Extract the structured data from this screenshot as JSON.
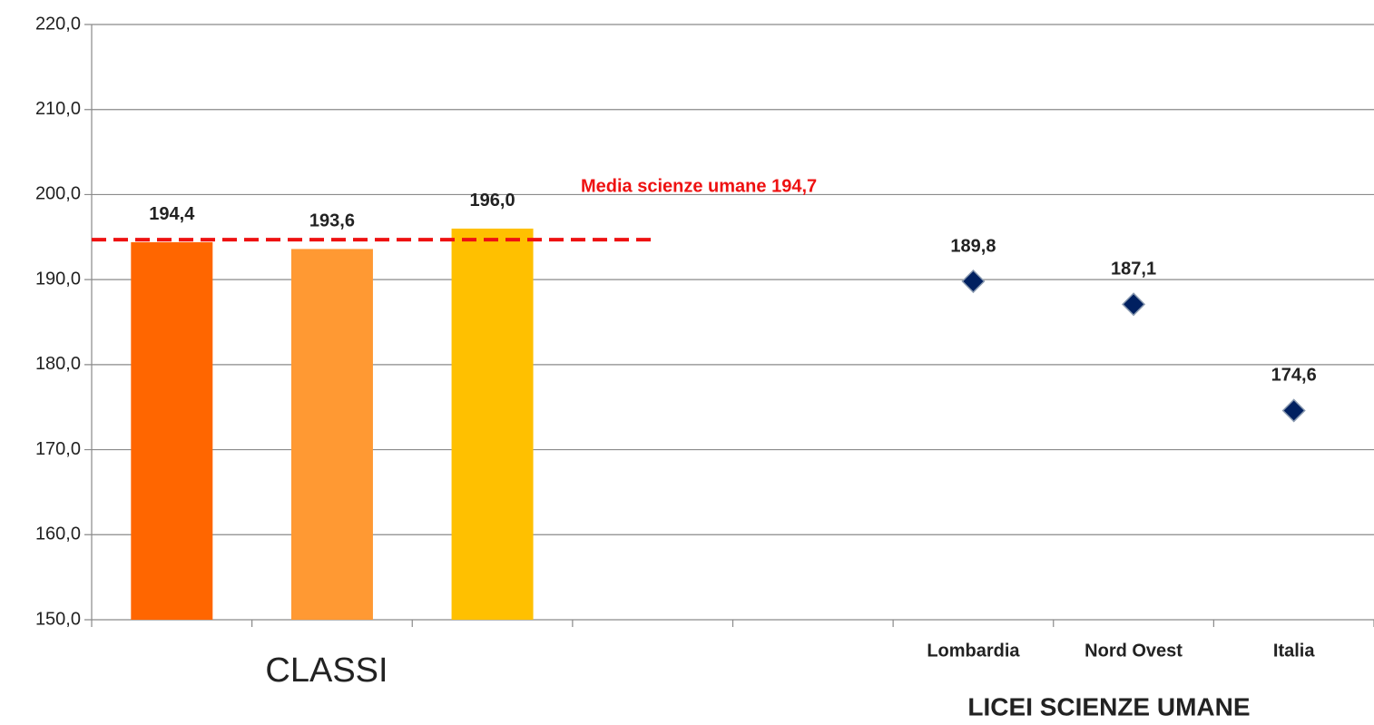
{
  "chart_data": {
    "type": "bar",
    "categories": [
      null,
      null,
      null,
      null,
      null,
      "Lombardia",
      "Nord Ovest",
      "Italia"
    ],
    "series": [
      {
        "type": "bar",
        "colors": [
          "#ff6600",
          "#ff9933",
          "#ffc000",
          null,
          null,
          null,
          null,
          null
        ],
        "values": [
          194.4,
          193.6,
          196.0,
          null,
          null,
          null,
          null,
          null
        ],
        "value_labels": [
          "194,4",
          "193,6",
          "196,0",
          null,
          null,
          null,
          null,
          null
        ]
      },
      {
        "type": "scatter",
        "color": "#002060",
        "values": [
          null,
          null,
          null,
          null,
          null,
          189.8,
          187.1,
          174.6
        ],
        "value_labels": [
          null,
          null,
          null,
          null,
          null,
          "189,8",
          "187,1",
          "174,6"
        ]
      }
    ],
    "reference_line": {
      "value": 194.7,
      "label": "Media scienze umane  194,7",
      "color": "#ee1111"
    },
    "group_labels": [
      "CLASSI",
      "LICEI SCIENZE UMANE"
    ],
    "ylim": [
      150,
      220
    ],
    "yticks": [
      {
        "value": 150,
        "label": "150,0"
      },
      {
        "value": 160,
        "label": "160,0"
      },
      {
        "value": 170,
        "label": "170,0"
      },
      {
        "value": 180,
        "label": "180,0"
      },
      {
        "value": 190,
        "label": "190,0"
      },
      {
        "value": 200,
        "label": "200,0"
      },
      {
        "value": 210,
        "label": "210,0"
      },
      {
        "value": 220,
        "label": "220,0"
      }
    ],
    "grid": true
  }
}
